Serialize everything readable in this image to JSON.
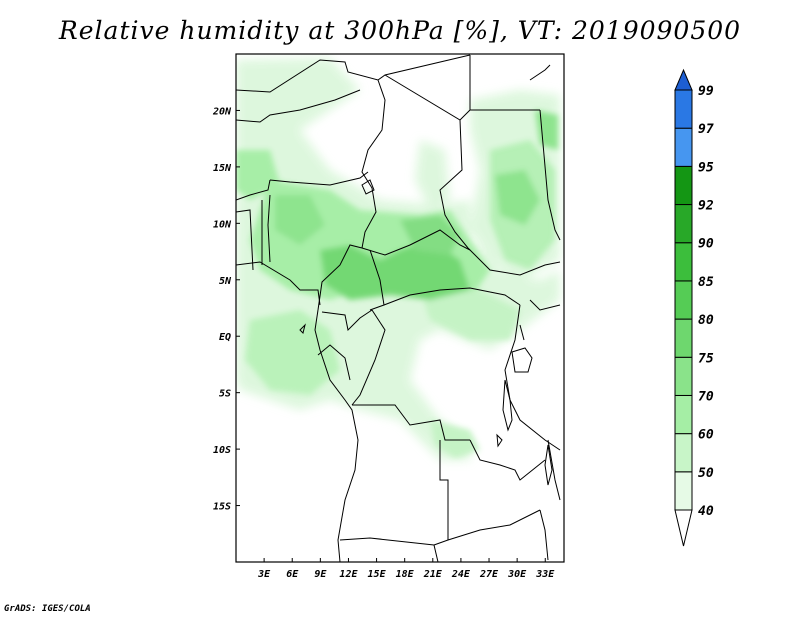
{
  "title": "Relative humidity at 300hPa [%], VT: 2019090500",
  "credit": "GrADS: IGES/COLA",
  "map": {
    "lon_range": [
      0,
      35
    ],
    "lat_range": [
      -20,
      25
    ],
    "x_ticks": [
      "3E",
      "6E",
      "9E",
      "12E",
      "15E",
      "18E",
      "21E",
      "24E",
      "27E",
      "30E",
      "33E"
    ],
    "y_ticks": [
      "20N",
      "15N",
      "10N",
      "5N",
      "EQ",
      "5S",
      "10S",
      "15S"
    ]
  },
  "colorbar": {
    "levels": [
      "40",
      "50",
      "60",
      "70",
      "75",
      "80",
      "85",
      "90",
      "92",
      "95",
      "97",
      "99"
    ],
    "colors": [
      "#ffffff",
      "#e6fae6",
      "#c8f5c8",
      "#a5eea5",
      "#8ae38a",
      "#6ed76e",
      "#55cc55",
      "#3cbe3c",
      "#28a828",
      "#149614",
      "#4696f0",
      "#2a78e4",
      "#1d5ed2"
    ]
  }
}
